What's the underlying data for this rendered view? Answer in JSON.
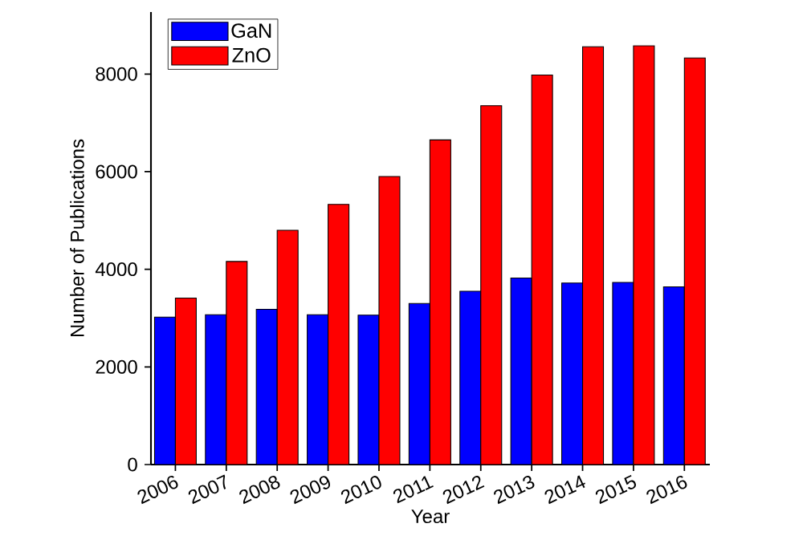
{
  "chart_data": {
    "type": "bar",
    "xlabel": "Year",
    "ylabel": "Number of Publications",
    "categories": [
      "2006",
      "2007",
      "2008",
      "2009",
      "2010",
      "2011",
      "2012",
      "2013",
      "2014",
      "2015",
      "2016"
    ],
    "series": [
      {
        "name": "GaN",
        "color": "#0000ff",
        "values": [
          3020,
          3070,
          3180,
          3070,
          3060,
          3300,
          3550,
          3820,
          3720,
          3730,
          3640
        ]
      },
      {
        "name": "ZnO",
        "color": "#ff0000",
        "values": [
          3410,
          4160,
          4800,
          5330,
          5900,
          6650,
          7350,
          7980,
          8560,
          8580,
          8330
        ]
      }
    ],
    "ylim": [
      0,
      9270
    ],
    "yticks": [
      0,
      2000,
      4000,
      6000,
      8000
    ],
    "grid": false,
    "legend": "top left"
  }
}
